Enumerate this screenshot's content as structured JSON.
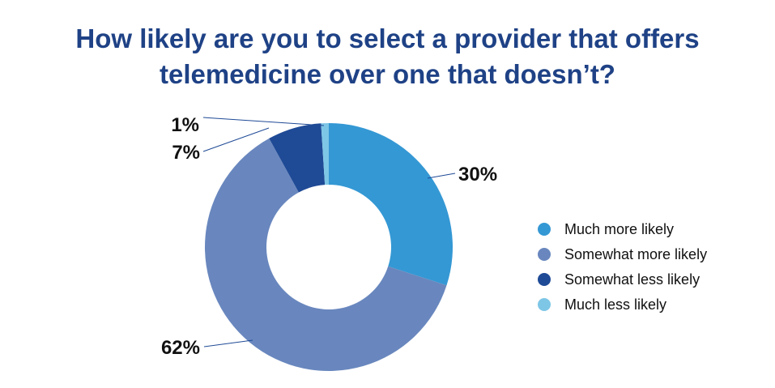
{
  "chart_data": {
    "type": "pie",
    "donut": true,
    "title": "How likely are you to select a provider that offers telemedicine over one that doesn’t?",
    "title_lines": [
      "How likely are you to select a provider that offers",
      "telemedicine over one that doesn’t?"
    ],
    "categories": [
      "Much more likely",
      "Somewhat more likely",
      "Somewhat less likely",
      "Much less likely"
    ],
    "values": [
      30,
      62,
      7,
      1
    ],
    "labels": [
      "30%",
      "62%",
      "7%",
      "1%"
    ],
    "colors": [
      "#3498d4",
      "#6987be",
      "#1f4a96",
      "#7ec6e6"
    ],
    "legend_position": "right"
  }
}
